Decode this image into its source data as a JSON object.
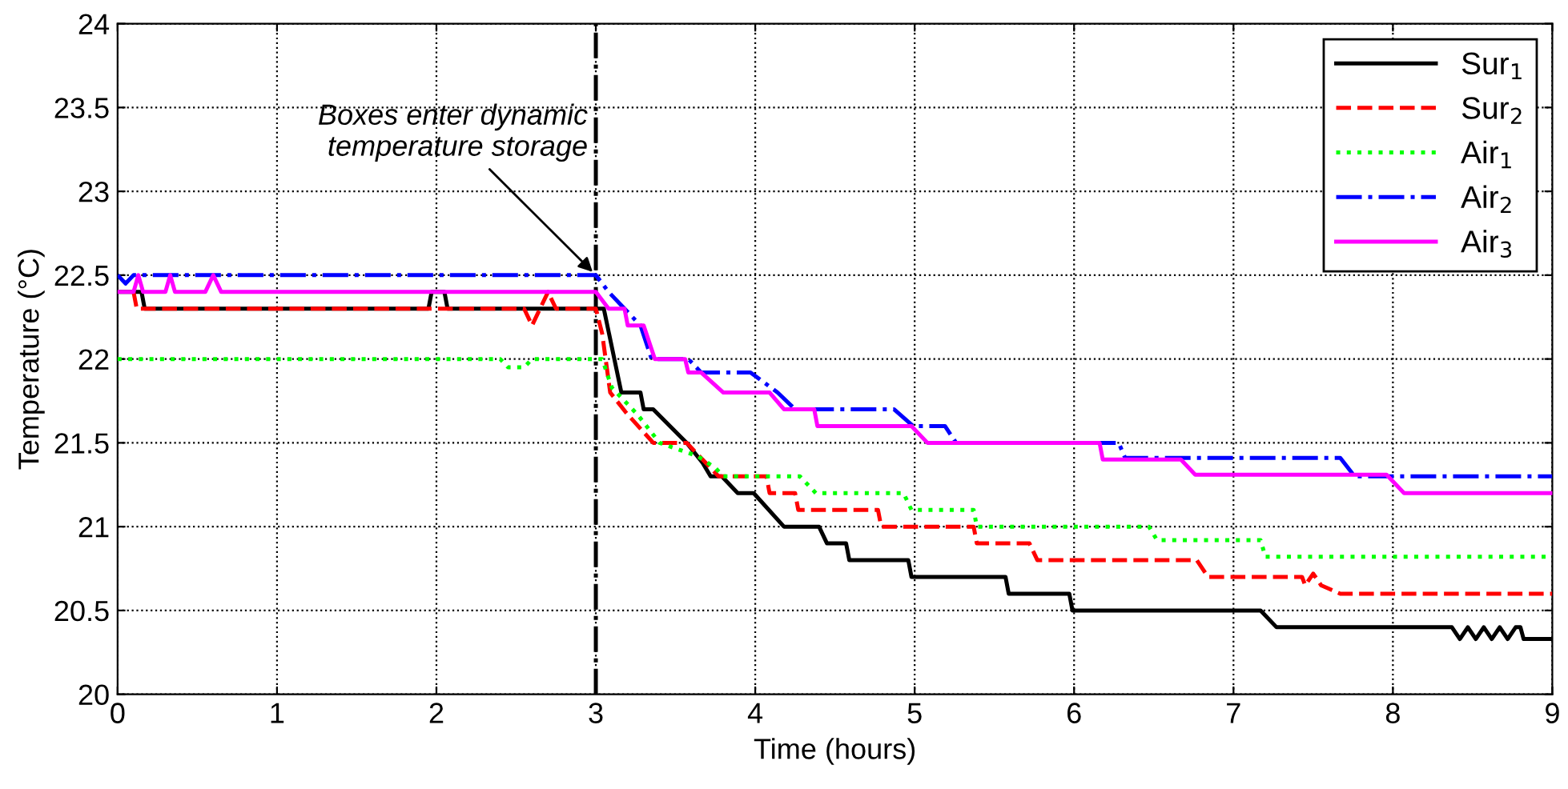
{
  "chart_data": {
    "type": "line",
    "xlabel": "Time (hours)",
    "ylabel": "Temperature (°C)",
    "xlim": [
      0,
      9
    ],
    "xticks": [
      0,
      1,
      2,
      3,
      4,
      5,
      6,
      7,
      8,
      9
    ],
    "ylim": [
      20,
      24
    ],
    "yticks": [
      20,
      20.5,
      21,
      21.5,
      22,
      22.5,
      23,
      23.5,
      24
    ],
    "grid": true,
    "legend": "top right",
    "marker": "none",
    "ref_lines": [
      {
        "axis": "x",
        "value": 3,
        "label": null,
        "color": "#000000",
        "line_style": "dashdot"
      }
    ],
    "annotations": [
      {
        "text": "Boxes enter dynamic\ntemperature storage",
        "x": 3,
        "y": 22.5
      }
    ],
    "series": [
      {
        "name": "Sur$_{1}$",
        "color": "#000000",
        "line_style": "solid",
        "x": [
          0,
          0.15,
          0.17,
          1.95,
          1.97,
          2.05,
          2.07,
          3.05,
          3.16,
          3.28,
          3.3,
          3.36,
          3.57,
          3.67,
          3.72,
          3.79,
          3.89,
          3.99,
          4.18,
          4.4,
          4.45,
          4.57,
          4.59,
          4.96,
          4.98,
          5.57,
          5.59,
          5.97,
          5.99,
          7.17,
          7.27,
          8.37,
          8.42,
          8.47,
          8.52,
          8.57,
          8.62,
          8.67,
          8.72,
          8.77,
          8.8,
          8.82,
          9
        ],
        "values": [
          22.4,
          22.4,
          22.3,
          22.3,
          22.4,
          22.4,
          22.3,
          22.3,
          21.8,
          21.8,
          21.7,
          21.7,
          21.5,
          21.38,
          21.3,
          21.3,
          21.2,
          21.2,
          21.0,
          21.0,
          20.9,
          20.9,
          20.8,
          20.8,
          20.7,
          20.7,
          20.6,
          20.6,
          20.5,
          20.5,
          20.4,
          20.4,
          20.33,
          20.4,
          20.33,
          20.4,
          20.33,
          20.4,
          20.33,
          20.4,
          20.4,
          20.33,
          20.33
        ]
      },
      {
        "name": "Sur$_{2}$",
        "color": "#ff0000",
        "line_style": "dashed",
        "x": [
          0.1,
          0.12,
          2.55,
          2.6,
          2.65,
          2.7,
          2.75,
          3.0,
          3.04,
          3.09,
          3.19,
          3.36,
          3.57,
          3.77,
          4.07,
          4.09,
          4.25,
          4.27,
          4.77,
          4.79,
          5.37,
          5.39,
          5.72,
          5.77,
          6.77,
          6.84,
          7.43,
          7.45,
          7.5,
          7.55,
          7.67,
          9
        ],
        "values": [
          22.4,
          22.3,
          22.3,
          22.2,
          22.3,
          22.4,
          22.3,
          22.3,
          22.15,
          21.8,
          21.68,
          21.5,
          21.5,
          21.3,
          21.3,
          21.2,
          21.2,
          21.1,
          21.1,
          21.0,
          21.0,
          20.9,
          20.9,
          20.8,
          20.8,
          20.7,
          20.7,
          20.65,
          20.72,
          20.65,
          20.6,
          20.6
        ]
      },
      {
        "name": "Air$_{1}$",
        "color": "#00ff00",
        "line_style": "dotted",
        "x": [
          0,
          2.4,
          2.45,
          2.55,
          2.6,
          3.04,
          3.1,
          3.26,
          3.4,
          3.64,
          3.75,
          3.8,
          4.28,
          4.38,
          4.93,
          4.98,
          5.37,
          5.39,
          6.47,
          6.52,
          7.17,
          7.2,
          9
        ],
        "values": [
          22.0,
          22.0,
          21.95,
          21.95,
          22.0,
          22.0,
          21.83,
          21.67,
          21.5,
          21.42,
          21.35,
          21.3,
          21.3,
          21.2,
          21.2,
          21.1,
          21.1,
          21.0,
          21.0,
          20.92,
          20.92,
          20.82,
          20.82
        ]
      },
      {
        "name": "Air$_{2}$",
        "color": "#0000ff",
        "line_style": "dashdot",
        "x": [
          0,
          0.05,
          0.1,
          3.0,
          3.08,
          3.18,
          3.28,
          3.35,
          3.58,
          3.66,
          3.97,
          4.14,
          4.25,
          4.87,
          4.99,
          5.19,
          5.26,
          6.28,
          6.32,
          7.67,
          7.76,
          9
        ],
        "values": [
          22.5,
          22.45,
          22.5,
          22.5,
          22.4,
          22.3,
          22.2,
          22.0,
          22.0,
          21.92,
          21.92,
          21.8,
          21.7,
          21.7,
          21.6,
          21.6,
          21.5,
          21.5,
          21.41,
          21.41,
          21.3,
          21.3
        ]
      },
      {
        "name": "Air$_{3}$",
        "color": "#ff00ff",
        "line_style": "solid",
        "x": [
          0,
          0.1,
          0.13,
          0.16,
          0.3,
          0.33,
          0.36,
          0.55,
          0.6,
          0.65,
          3.0,
          3.08,
          3.18,
          3.2,
          3.3,
          3.37,
          3.56,
          3.58,
          3.66,
          3.8,
          4.09,
          4.18,
          4.37,
          4.39,
          4.98,
          5.08,
          6.16,
          6.18,
          6.67,
          6.76,
          7.96,
          8.07,
          9
        ],
        "values": [
          22.4,
          22.4,
          22.5,
          22.4,
          22.4,
          22.5,
          22.4,
          22.4,
          22.5,
          22.4,
          22.4,
          22.3,
          22.3,
          22.2,
          22.2,
          22.0,
          22.0,
          21.92,
          21.92,
          21.8,
          21.8,
          21.7,
          21.7,
          21.6,
          21.6,
          21.5,
          21.5,
          21.4,
          21.4,
          21.31,
          21.31,
          21.2,
          21.2
        ]
      }
    ]
  }
}
